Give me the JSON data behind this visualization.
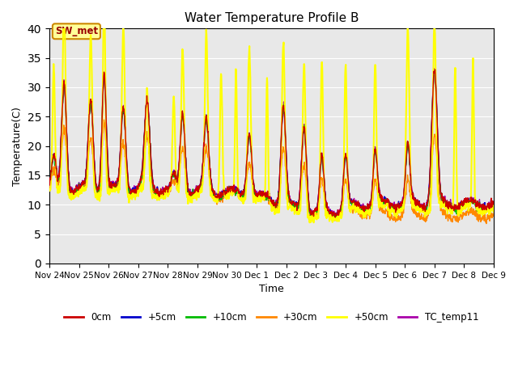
{
  "title": "Water Temperature Profile B",
  "xlabel": "Time",
  "ylabel": "Temperature(C)",
  "ylim": [
    0,
    40
  ],
  "yticks": [
    0,
    5,
    10,
    15,
    20,
    25,
    30,
    35,
    40
  ],
  "bg_color": "#e8e8e8",
  "series": {
    "0cm": {
      "color": "#cc0000",
      "lw": 1.0
    },
    "+5cm": {
      "color": "#0000cc",
      "lw": 1.0
    },
    "+10cm": {
      "color": "#00bb00",
      "lw": 1.0
    },
    "+30cm": {
      "color": "#ff8800",
      "lw": 1.0
    },
    "+50cm": {
      "color": "#ffff00",
      "lw": 1.5
    },
    "TC_temp11": {
      "color": "#aa00aa",
      "lw": 1.0
    }
  },
  "annotation": {
    "text": "SW_met",
    "color": "#990000",
    "bg": "#ffff99",
    "border": "#cc8800"
  },
  "n_points": 1440,
  "x_start": 0,
  "x_end": 15,
  "xtick_positions": [
    0,
    1,
    2,
    3,
    4,
    5,
    6,
    7,
    8,
    9,
    10,
    11,
    12,
    13,
    14,
    15
  ],
  "xtick_labels": [
    "Nov 24",
    "Nov 25",
    "Nov 26",
    "Nov 27",
    "Nov 28",
    "Nov 29",
    "Nov 30",
    "Dec 1",
    "Dec 2",
    "Dec 3",
    "Dec 4",
    "Dec 5",
    "Dec 6",
    "Dec 7",
    "Dec 8",
    "Dec 9"
  ]
}
